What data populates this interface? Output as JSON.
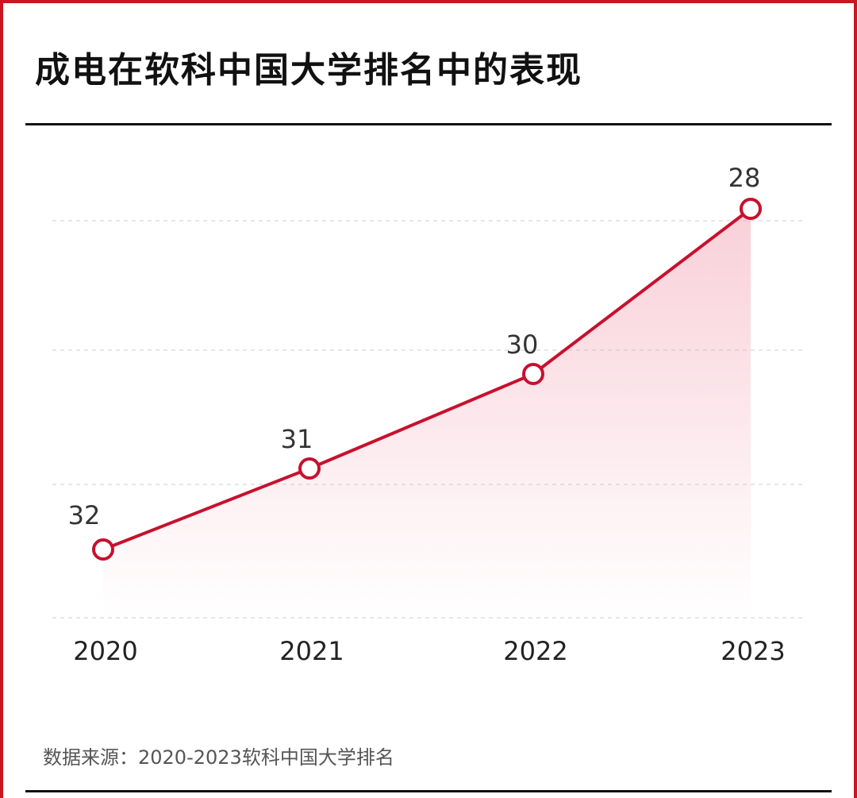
{
  "title": "成电在软科中国大学排名中的表现",
  "source": "数据来源：2020-2023软科中国大学排名",
  "colors": {
    "accent": "#c8102e",
    "frame": "#c8171e",
    "area": "#f4b6c2",
    "grid": "#dddddd"
  },
  "chart_data": {
    "type": "area",
    "title": "成电在软科中国大学排名中的表现",
    "categories": [
      "2020",
      "2021",
      "2022",
      "2023"
    ],
    "series": [
      {
        "values": [
          32,
          31,
          30,
          28
        ],
        "labels": [
          "32",
          "31",
          "30",
          "28"
        ]
      }
    ],
    "y_inverted": true,
    "grid": "horizontal-dashed",
    "legend": "none"
  }
}
